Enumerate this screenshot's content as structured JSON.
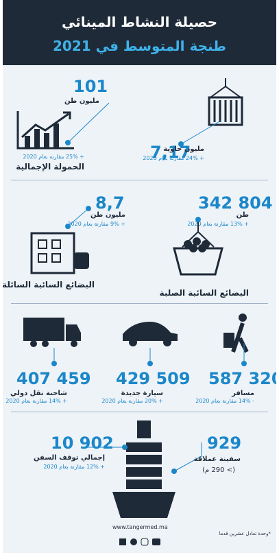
{
  "header": {
    "title": "حصيلة النشاط المينائي",
    "subtitle": "طنجة المتوسط في 2021"
  },
  "sections": [
    {
      "items": [
        {
          "value": "7,17",
          "unit": "مليون حاوية",
          "change": "+ 24% مقارنة بعام 2020"
        },
        {
          "value": "101",
          "unit": "مليون طن",
          "change": "+ 25% مقارنة بعام 2020",
          "label": "الحمولة الإجمالية"
        }
      ]
    },
    {
      "items": [
        {
          "value": "342 804",
          "unit": "طن",
          "change": "+ 13% مقارنة بعام 2020",
          "label": "البضائع السائبة الصلبة"
        },
        {
          "value": "8,7",
          "unit": "مليون طن",
          "change": "+ 9% مقارنة بعام 2020",
          "label": "البضائع السائبة السائلة"
        }
      ]
    },
    {
      "items": [
        {
          "value": "587 320",
          "unit": "مسافر",
          "change": "- 14% مقارنة بعام 2020"
        },
        {
          "value": "429 509",
          "unit": "سيارة جديدة",
          "change": "+ 20% مقارنة بعام 2020"
        },
        {
          "value": "407 459",
          "unit": "شاحنة نقل دولي",
          "change": "+ 14% مقارنة بعام 2020"
        }
      ]
    },
    {
      "items": [
        {
          "value": "929",
          "unit": "سفينة عملاقة",
          "change": "(> 290 م)"
        },
        {
          "value": "10 902",
          "unit": "إجمالي توقف السفن",
          "change": "+ 12% مقارنة بعام 2020"
        }
      ]
    }
  ],
  "footer": {
    "url": "www.tangermed.ma",
    "note": "*وحدة تعادل عشرين قدما"
  }
}
